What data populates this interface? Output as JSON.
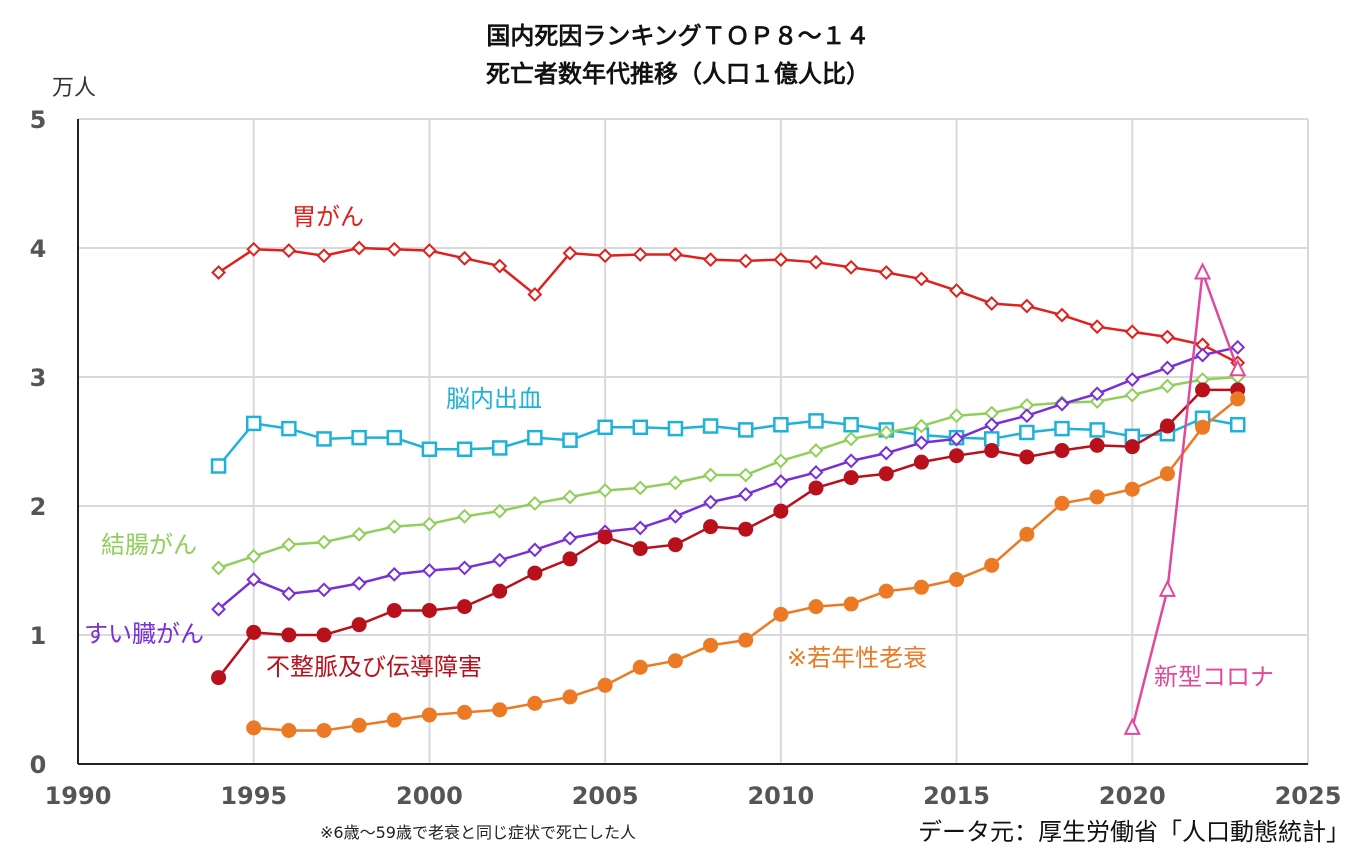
{
  "chart_data": {
    "type": "line",
    "title": [
      "国内死因ランキングＴＯＰ８～１４",
      "死亡者数年代推移（人口１億人比）"
    ],
    "ylabel": "万人",
    "xlabel": "",
    "xlim": [
      1990,
      2025
    ],
    "ylim": [
      0,
      5
    ],
    "xticks": [
      1990,
      1995,
      2000,
      2005,
      2010,
      2015,
      2020,
      2025
    ],
    "yticks": [
      0,
      1,
      2,
      3,
      4,
      5
    ],
    "grid": true,
    "footnote": "※6歳～59歳で老衰と同じ症状で死亡した人",
    "source": "データ元：厚生労働省「人口動態統計」",
    "series": [
      {
        "name": "胃がん",
        "color": "#e0201c",
        "marker": "diamond-open",
        "x": [
          1994,
          1995,
          1996,
          1997,
          1998,
          1999,
          2000,
          2001,
          2002,
          2003,
          2004,
          2005,
          2006,
          2007,
          2008,
          2009,
          2010,
          2011,
          2012,
          2013,
          2014,
          2015,
          2016,
          2017,
          2018,
          2019,
          2020,
          2021,
          2022,
          2023
        ],
        "values": [
          3.81,
          3.99,
          3.98,
          3.94,
          4.0,
          3.99,
          3.98,
          3.92,
          3.86,
          3.64,
          3.96,
          3.94,
          3.95,
          3.95,
          3.91,
          3.9,
          3.91,
          3.89,
          3.85,
          3.81,
          3.76,
          3.67,
          3.57,
          3.55,
          3.48,
          3.39,
          3.35,
          3.31,
          3.25,
          3.11
        ]
      },
      {
        "name": "脳内出血",
        "color": "#1fb2d9",
        "marker": "square-open",
        "x": [
          1994,
          1995,
          1996,
          1997,
          1998,
          1999,
          2000,
          2001,
          2002,
          2003,
          2004,
          2005,
          2006,
          2007,
          2008,
          2009,
          2010,
          2011,
          2012,
          2013,
          2014,
          2015,
          2016,
          2017,
          2018,
          2019,
          2020,
          2021,
          2022,
          2023
        ],
        "values": [
          2.31,
          2.64,
          2.6,
          2.52,
          2.53,
          2.53,
          2.44,
          2.44,
          2.45,
          2.53,
          2.51,
          2.61,
          2.61,
          2.6,
          2.62,
          2.59,
          2.63,
          2.66,
          2.63,
          2.59,
          2.55,
          2.53,
          2.52,
          2.57,
          2.6,
          2.59,
          2.54,
          2.56,
          2.68,
          2.63
        ]
      },
      {
        "name": "結腸がん",
        "color": "#8fcf5a",
        "marker": "diamond-open",
        "x": [
          1994,
          1995,
          1996,
          1997,
          1998,
          1999,
          2000,
          2001,
          2002,
          2003,
          2004,
          2005,
          2006,
          2007,
          2008,
          2009,
          2010,
          2011,
          2012,
          2013,
          2014,
          2015,
          2016,
          2017,
          2018,
          2019,
          2020,
          2021,
          2022,
          2023
        ],
        "values": [
          1.52,
          1.61,
          1.7,
          1.72,
          1.78,
          1.84,
          1.86,
          1.92,
          1.96,
          2.02,
          2.07,
          2.12,
          2.14,
          2.18,
          2.24,
          2.24,
          2.35,
          2.43,
          2.52,
          2.57,
          2.62,
          2.7,
          2.72,
          2.78,
          2.8,
          2.81,
          2.86,
          2.93,
          2.98,
          3.0
        ]
      },
      {
        "name": "すい臓がん",
        "color": "#7a2fd6",
        "marker": "diamond-open",
        "x": [
          1994,
          1995,
          1996,
          1997,
          1998,
          1999,
          2000,
          2001,
          2002,
          2003,
          2004,
          2005,
          2006,
          2007,
          2008,
          2009,
          2010,
          2011,
          2012,
          2013,
          2014,
          2015,
          2016,
          2017,
          2018,
          2019,
          2020,
          2021,
          2022,
          2023
        ],
        "values": [
          1.2,
          1.43,
          1.32,
          1.35,
          1.4,
          1.47,
          1.5,
          1.52,
          1.58,
          1.66,
          1.75,
          1.8,
          1.83,
          1.92,
          2.03,
          2.09,
          2.19,
          2.26,
          2.35,
          2.41,
          2.49,
          2.52,
          2.63,
          2.7,
          2.79,
          2.87,
          2.98,
          3.07,
          3.17,
          3.23
        ]
      },
      {
        "name": "不整脈及び伝導障害",
        "color": "#b8111c",
        "marker": "circle-filled",
        "x": [
          1994,
          1995,
          1996,
          1997,
          1998,
          1999,
          2000,
          2001,
          2002,
          2003,
          2004,
          2005,
          2006,
          2007,
          2008,
          2009,
          2010,
          2011,
          2012,
          2013,
          2014,
          2015,
          2016,
          2017,
          2018,
          2019,
          2020,
          2021,
          2022,
          2023
        ],
        "values": [
          0.67,
          1.02,
          1.0,
          1.0,
          1.08,
          1.19,
          1.19,
          1.22,
          1.34,
          1.48,
          1.59,
          1.76,
          1.67,
          1.7,
          1.84,
          1.82,
          1.96,
          2.14,
          2.22,
          2.25,
          2.34,
          2.39,
          2.43,
          2.38,
          2.43,
          2.47,
          2.46,
          2.62,
          2.9,
          2.9
        ]
      },
      {
        "name": "※若年性老衰",
        "color": "#ec7a24",
        "marker": "circle-filled",
        "x": [
          1995,
          1996,
          1997,
          1998,
          1999,
          2000,
          2001,
          2002,
          2003,
          2004,
          2005,
          2006,
          2007,
          2008,
          2009,
          2010,
          2011,
          2012,
          2013,
          2014,
          2015,
          2016,
          2017,
          2018,
          2019,
          2020,
          2021,
          2022,
          2023
        ],
        "values": [
          0.28,
          0.26,
          0.26,
          0.3,
          0.34,
          0.38,
          0.4,
          0.42,
          0.47,
          0.52,
          0.61,
          0.75,
          0.8,
          0.92,
          0.96,
          1.16,
          1.22,
          1.24,
          1.34,
          1.37,
          1.43,
          1.54,
          1.78,
          2.02,
          2.07,
          2.13,
          2.25,
          2.61,
          2.83
        ]
      },
      {
        "name": "新型コロナ",
        "color": "#e0489b",
        "marker": "triangle-open",
        "x": [
          2020,
          2021,
          2022,
          2023
        ],
        "values": [
          0.28,
          1.35,
          3.81,
          3.06
        ]
      }
    ]
  }
}
